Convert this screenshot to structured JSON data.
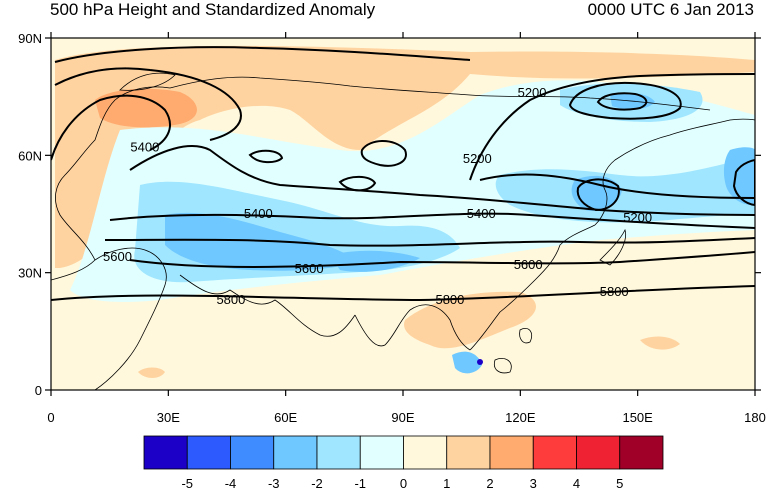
{
  "title": {
    "left": "500 hPa Height and Standardized Anomaly",
    "right": "0000 UTC 6 Jan 2013"
  },
  "map": {
    "lon_range": [
      0,
      180
    ],
    "lat_range": [
      0,
      90
    ],
    "lat_ticks": [
      {
        "value": 0,
        "label": "0"
      },
      {
        "value": 30,
        "label": "30N"
      },
      {
        "value": 60,
        "label": "60N"
      },
      {
        "value": 90,
        "label": "90N"
      }
    ],
    "lon_ticks": [
      {
        "value": 0,
        "label": "0"
      },
      {
        "value": 30,
        "label": "30E"
      },
      {
        "value": 60,
        "label": "60E"
      },
      {
        "value": 90,
        "label": "90E"
      },
      {
        "value": 120,
        "label": "120E"
      },
      {
        "value": 150,
        "label": "150E"
      },
      {
        "value": 180,
        "label": "180"
      }
    ],
    "contour_labels": [
      {
        "text": "5200",
        "lon": 123,
        "lat": 76
      },
      {
        "text": "5200",
        "lon": 109,
        "lat": 59
      },
      {
        "text": "5200",
        "lon": 150,
        "lat": 44
      },
      {
        "text": "5400",
        "lon": 24,
        "lat": 62
      },
      {
        "text": "5400",
        "lon": 53,
        "lat": 45
      },
      {
        "text": "5400",
        "lon": 110,
        "lat": 45
      },
      {
        "text": "5600",
        "lon": 17,
        "lat": 34
      },
      {
        "text": "5600",
        "lon": 66,
        "lat": 31
      },
      {
        "text": "5600",
        "lon": 122,
        "lat": 32
      },
      {
        "text": "5800",
        "lon": 46,
        "lat": 23
      },
      {
        "text": "5800",
        "lon": 102,
        "lat": 23
      },
      {
        "text": "5800",
        "lon": 144,
        "lat": 25
      }
    ]
  },
  "colorbar": {
    "colors": [
      "#1c00c8",
      "#2d5aff",
      "#3e8cff",
      "#6fc8ff",
      "#a0e6ff",
      "#e1ffff",
      "#fff8dc",
      "#ffd3a0",
      "#ffaa6e",
      "#ff3c3c",
      "#ee2233",
      "#a00028"
    ],
    "labels": [
      "-5",
      "-4",
      "-3",
      "-2",
      "-1",
      "0",
      "1",
      "2",
      "3",
      "4",
      "5"
    ]
  }
}
